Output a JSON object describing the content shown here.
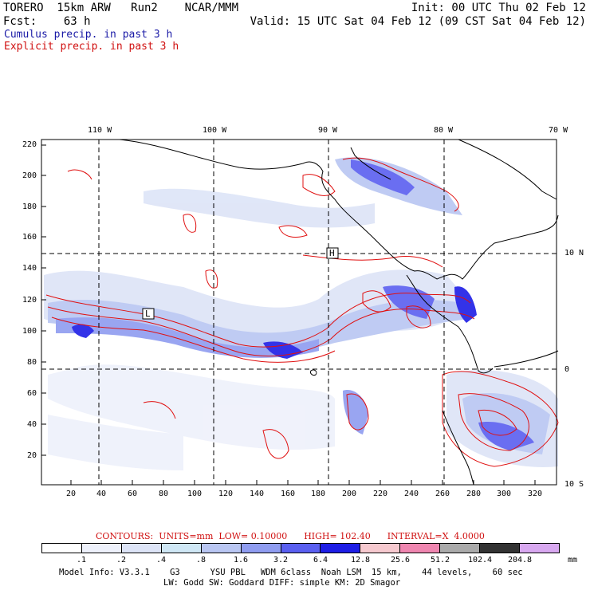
{
  "header": {
    "line1_left": "TORERO  15km ARW   Run2    NCAR/MMM",
    "line1_right": "Init: 00 UTC Thu 02 Feb 12",
    "line2_left": "Fcst:    63 h",
    "line2_right": "Valid: 15 UTC Sat 04 Feb 12 (09 CST Sat 04 Feb 12)",
    "legend_cumulus": "Cumulus precip. in past 3 h",
    "legend_explicit": "Explicit precip. in past 3 h"
  },
  "map": {
    "top_axis": [
      "110 W",
      "100 W",
      "90 W",
      "80 W",
      "70 W"
    ],
    "right_axis": [
      "10 N",
      "0",
      "10 S"
    ],
    "y_ticks": [
      "220",
      "200",
      "180",
      "160",
      "140",
      "120",
      "100",
      "80",
      "60",
      "40",
      "20"
    ],
    "x_ticks": [
      "20",
      "40",
      "60",
      "80",
      "100",
      "120",
      "140",
      "160",
      "180",
      "200",
      "220",
      "240",
      "260",
      "280",
      "300",
      "320"
    ],
    "marker_low": "L",
    "marker_high": "H"
  },
  "contours": {
    "label": "CONTOURS:  UNITS=mm  LOW= 0.10000      HIGH= 102.40      INTERVAL=X  4.0000"
  },
  "colorbar": {
    "labels": [
      ".1",
      ".2",
      ".4",
      ".8",
      "1.6",
      "3.2",
      "6.4",
      "12.8",
      "25.6",
      "51.2",
      "102.4",
      "204.8"
    ],
    "units": "mm",
    "colors": [
      "#ffffff",
      "#eef1fb",
      "#dde4f7",
      "#cfe7f5",
      "#b9c6f2",
      "#8f9cf0",
      "#5a5ff0",
      "#1e1ee6",
      "#f6c9cf",
      "#ef86b0",
      "#aaaaaa",
      "#333333",
      "#d8a8f0"
    ]
  },
  "footer": {
    "line1": "Model Info: V3.3.1    G3      YSU PBL   WDM 6class  Noah LSM  15 km,    44 levels,    60 sec",
    "line2": "LW: Godd SW: Goddard DIFF: simple KM: 2D Smagor"
  }
}
